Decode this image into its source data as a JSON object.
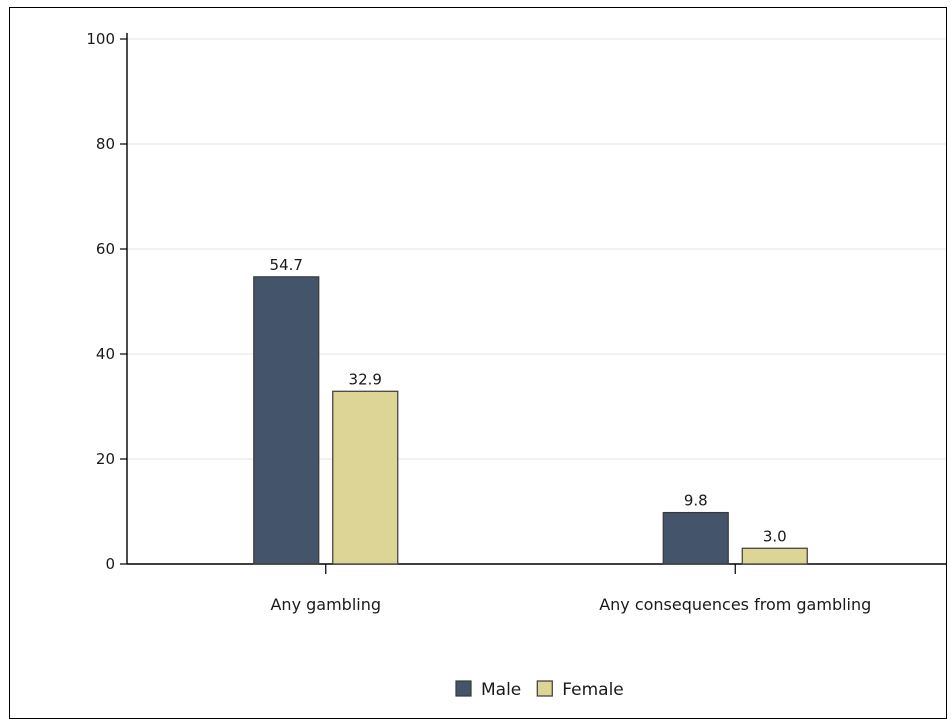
{
  "chart_data": {
    "type": "bar",
    "categories": [
      "Any gambling",
      "Any consequences from gambling"
    ],
    "series": [
      {
        "name": "Male",
        "values": [
          54.7,
          9.8
        ],
        "color": "#44546a"
      },
      {
        "name": "Female",
        "values": [
          32.9,
          3.0
        ],
        "color": "#ddd595"
      }
    ],
    "data_labels": [
      [
        "54.7",
        "9.8"
      ],
      [
        "32.9",
        "3.0"
      ]
    ],
    "ylim": [
      0,
      100
    ],
    "yticks": [
      0,
      20,
      40,
      60,
      80,
      100
    ],
    "grid": true,
    "legend_position": "bottom-center"
  }
}
